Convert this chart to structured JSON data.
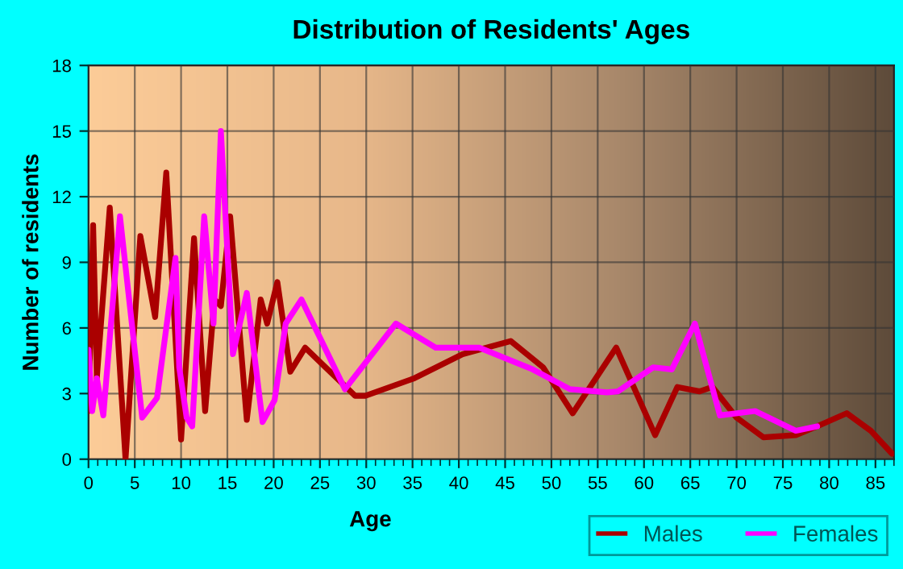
{
  "chart_data": {
    "type": "line",
    "title": "Distribution of Residents' Ages",
    "xlabel": "Age",
    "ylabel": "Number of residents",
    "xlim": [
      0,
      87
    ],
    "xticks": [
      0,
      5,
      10,
      15,
      20,
      25,
      30,
      35,
      40,
      45,
      50,
      55,
      60,
      65,
      70,
      75,
      80,
      85
    ],
    "ylim": [
      0,
      18
    ],
    "yticks": [
      0,
      3,
      6,
      9,
      12,
      15,
      18
    ],
    "grid": true,
    "legend": "bottom right",
    "marker": "none",
    "line_style": "solid",
    "series": [
      {
        "name": "Males",
        "color": "#aa0000",
        "x": [
          0,
          0.5,
          0.9,
          2.3,
          4.0,
          5.6,
          7.2,
          8.4,
          10.0,
          11.4,
          12.6,
          13.6,
          14.3,
          15.3,
          17.1,
          18.6,
          19.3,
          20.4,
          21.8,
          23.4,
          28.8,
          29.9,
          35.2,
          40.4,
          45.6,
          49.1,
          52.3,
          57.0,
          61.2,
          63.6,
          66.0,
          67.4,
          70.0,
          72.9,
          76.4,
          78.7,
          81.9,
          84.5,
          86.8
        ],
        "values": [
          2.2,
          10.7,
          3.7,
          11.5,
          0,
          10.2,
          6.5,
          13.1,
          0.9,
          10.1,
          2.2,
          7.3,
          7.0,
          11.1,
          1.8,
          7.3,
          6.2,
          8.1,
          4.0,
          5.1,
          2.9,
          2.9,
          3.7,
          4.8,
          5.4,
          4.2,
          2.1,
          5.1,
          1.1,
          3.3,
          3.1,
          3.3,
          1.9,
          1.0,
          1.1,
          1.5,
          2.1,
          1.3,
          0.25
        ]
      },
      {
        "name": "Females",
        "color": "#ff00ff",
        "x": [
          0,
          0.4,
          0.9,
          1.6,
          3.4,
          5.8,
          7.4,
          9.4,
          9.8,
          10.6,
          11.2,
          12.5,
          13.5,
          14.3,
          15.6,
          17.1,
          18.8,
          20.1,
          21.3,
          23.0,
          27.7,
          33.2,
          37.5,
          42.2,
          48.0,
          52.0,
          56.0,
          57.2,
          61.0,
          63.0,
          65.5,
          68.2,
          72.0,
          76.4,
          78.7
        ],
        "values": [
          5.0,
          2.2,
          3.7,
          2.0,
          11.1,
          1.9,
          2.8,
          9.2,
          4.2,
          1.9,
          1.5,
          11.1,
          6.2,
          15.0,
          4.8,
          7.6,
          1.7,
          2.7,
          6.2,
          7.3,
          3.2,
          6.2,
          5.1,
          5.1,
          4.1,
          3.2,
          3.05,
          3.1,
          4.2,
          4.1,
          6.2,
          2.0,
          2.2,
          1.3,
          1.5
        ]
      }
    ]
  }
}
